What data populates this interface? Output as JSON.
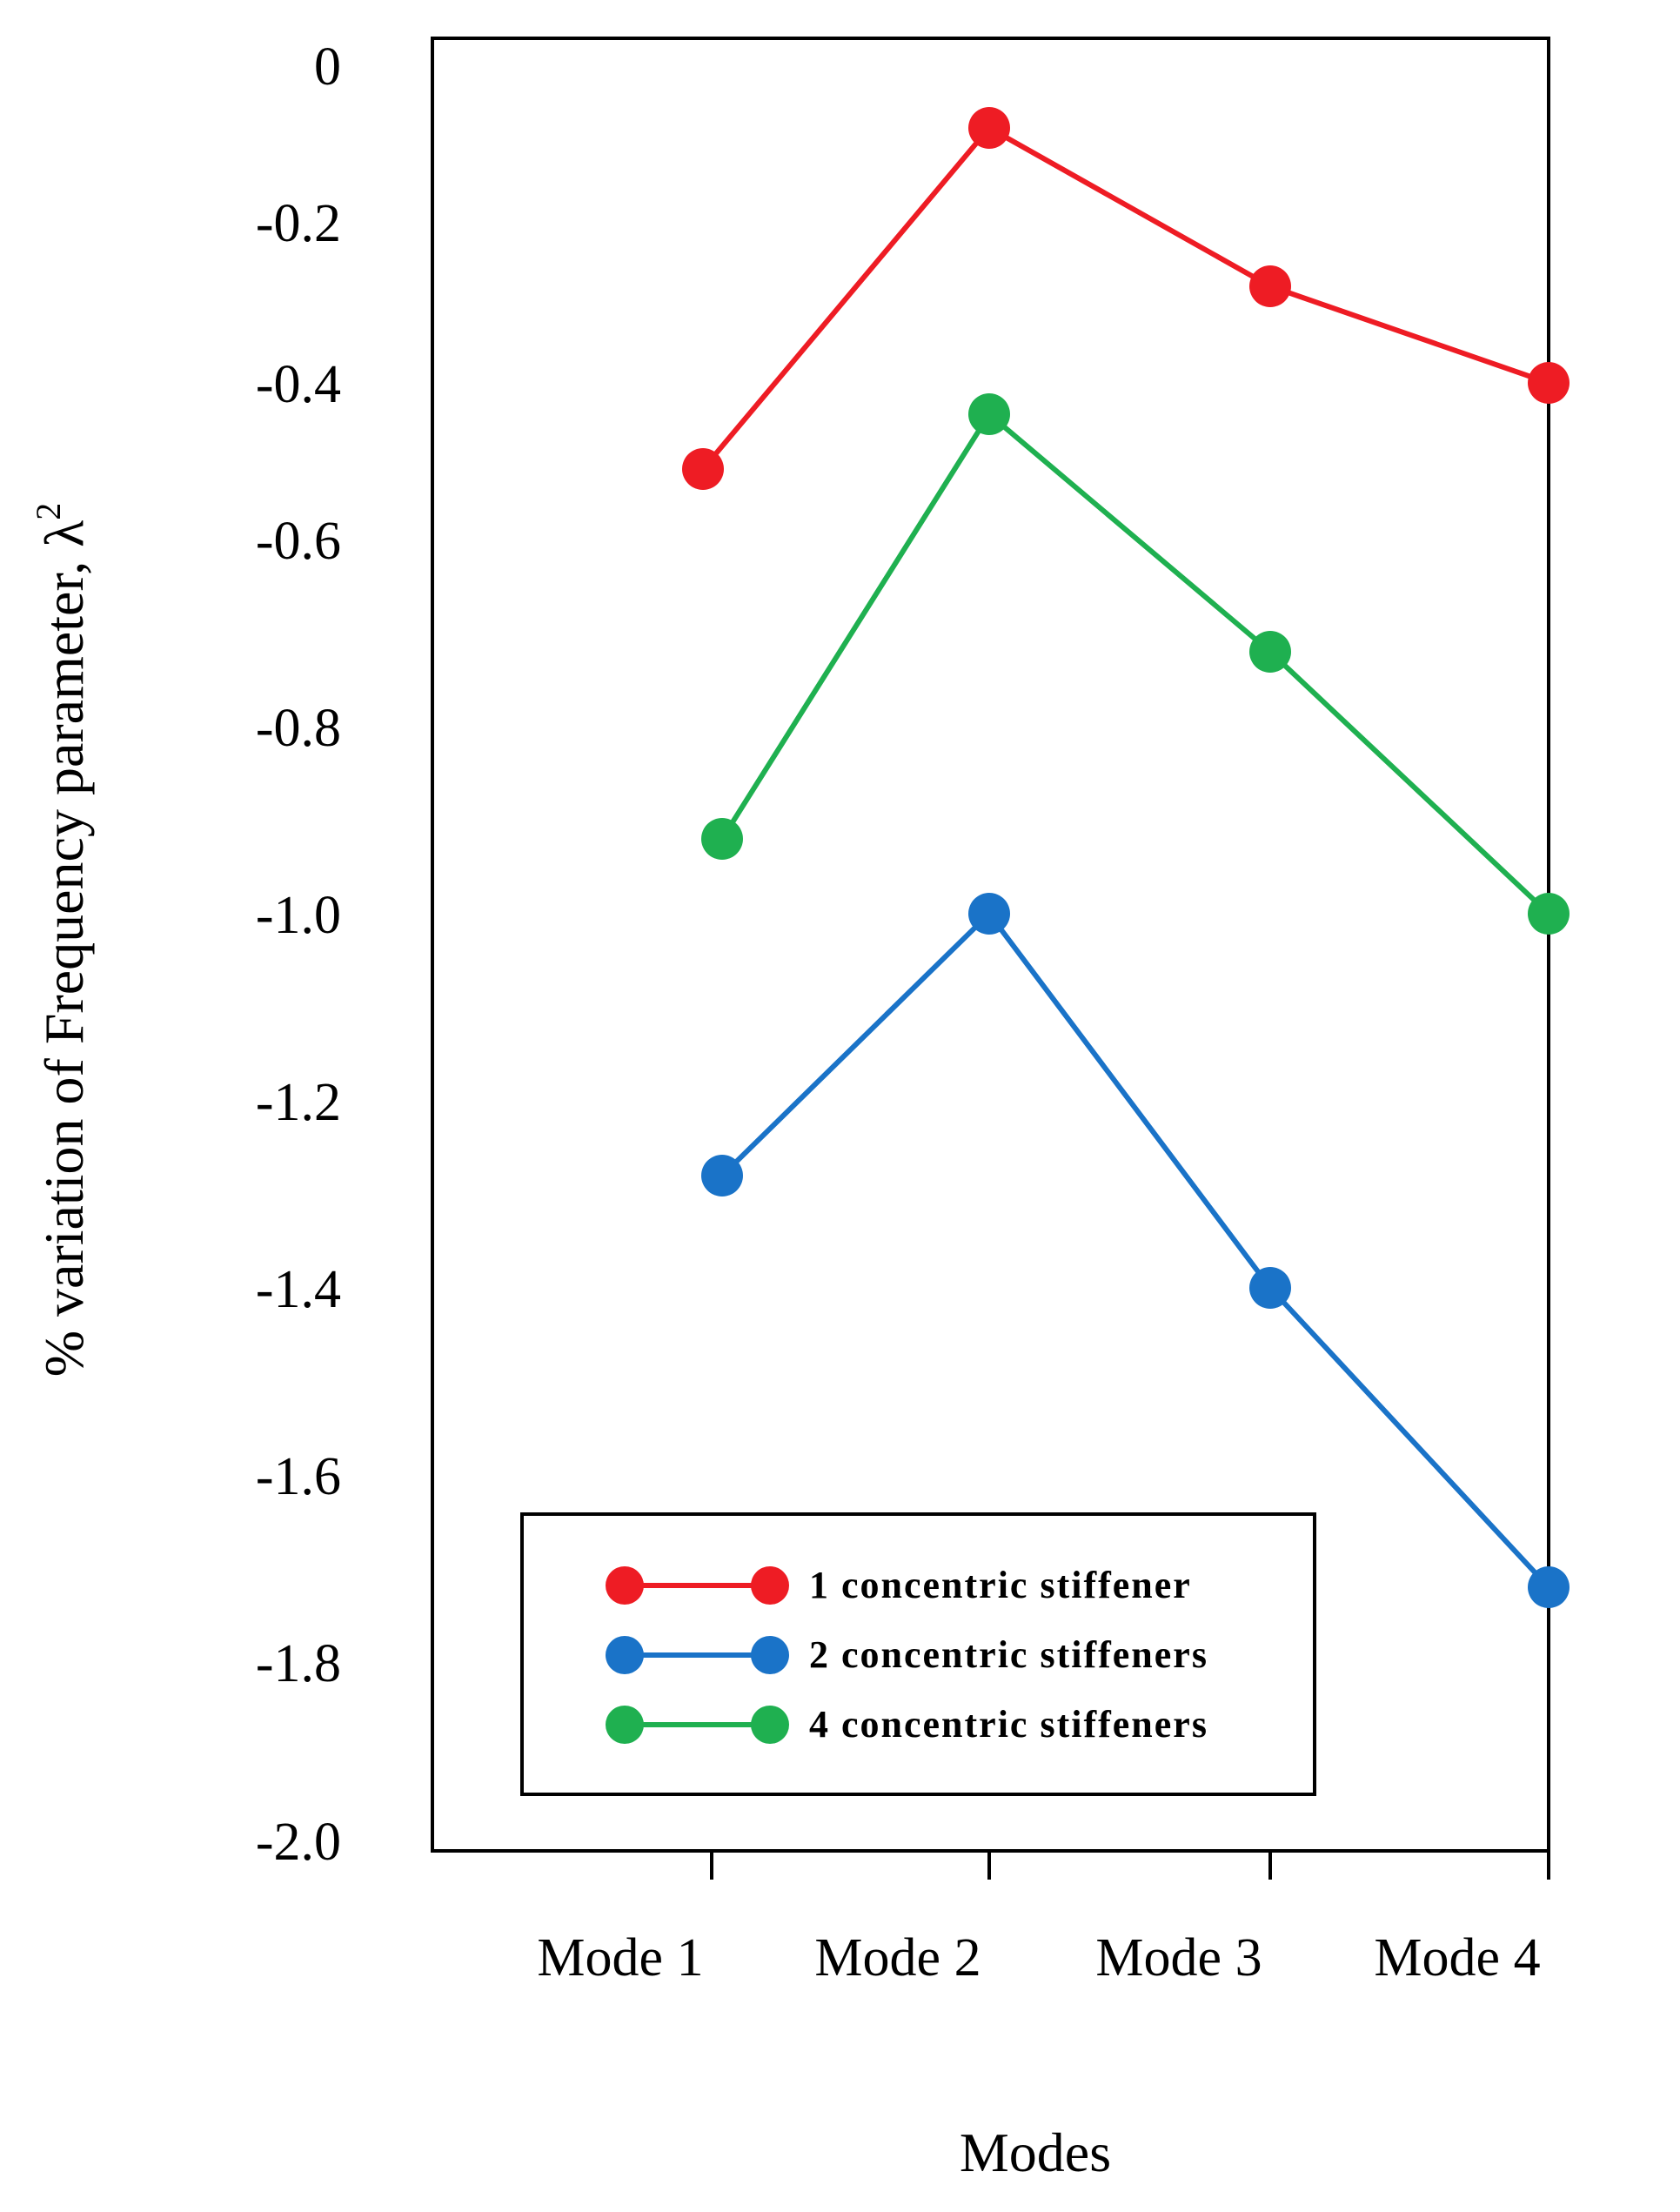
{
  "chart_data": {
    "type": "line",
    "title": "",
    "xlabel": "Modes",
    "ylabel": "% variation of Frequency parameter, λ",
    "ylabel_superscript": "2",
    "categories": [
      "Mode 1",
      "Mode 2",
      "Mode 3",
      "Mode 4"
    ],
    "yticks": [
      "0",
      "-0.2",
      "-0.4",
      "-0.6",
      "-0.8",
      "-1.0",
      "-1.2",
      "-1.4",
      "-1.6",
      "-1.8",
      "-2.0"
    ],
    "ylim": [
      -2.0,
      0
    ],
    "grid": false,
    "legend_position": "bottom-right",
    "series": [
      {
        "name": "1 concentric stiffener",
        "color": "#ee1c24",
        "values": [
          -0.51,
          -0.08,
          -0.28,
          -0.4
        ]
      },
      {
        "name": "2 concentric stiffeners",
        "color": "#1a73c8",
        "values": [
          -1.28,
          -1.0,
          -1.4,
          -1.72
        ]
      },
      {
        "name": "4 concentric stiffeners",
        "color": "#1fb050",
        "values": [
          -0.92,
          -0.44,
          -0.72,
          -1.0
        ]
      }
    ]
  }
}
